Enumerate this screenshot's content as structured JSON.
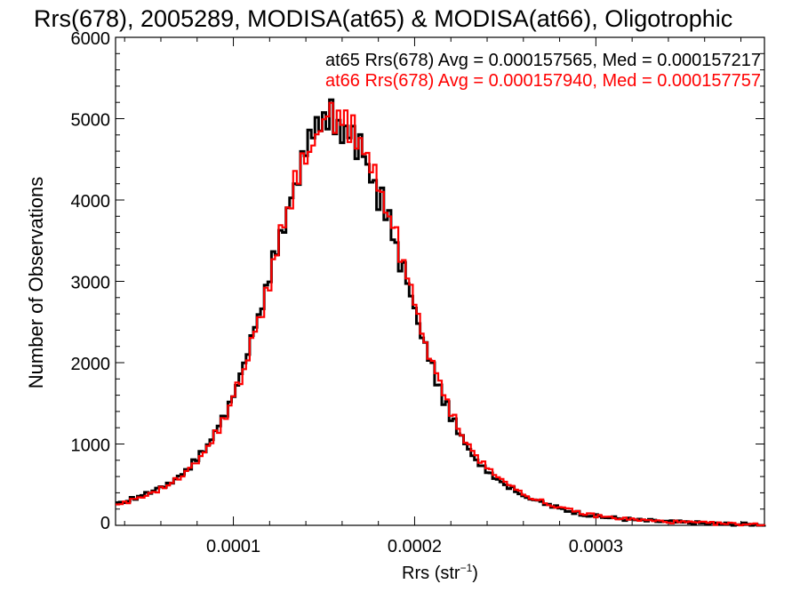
{
  "chart_data": {
    "type": "line",
    "title": "Rrs(678), 2005289, MODISA(at65) & MODISA(at66), Oligotrophic",
    "xlabel": "Rrs (str",
    "xlabel_sup": "−1",
    "xlabel_close": ")",
    "ylabel": "Number of Observations",
    "xlim": [
      3.5e-05,
      0.000393
    ],
    "ylim": [
      0,
      6000
    ],
    "x_tick_labels": [
      "0.0001",
      "0.0002",
      "0.0003"
    ],
    "y_tick_labels": [
      "0",
      "1000",
      "2000",
      "3000",
      "4000",
      "5000",
      "6000"
    ],
    "grid": false,
    "legend_position": "top-right",
    "legend": [
      {
        "text": "at65 Rrs(678) Avg = 0.000157565, Med = 0.000157217",
        "color": "#000000"
      },
      {
        "text": "at66 Rrs(678) Avg = 0.000157940, Med = 0.000157757",
        "color": "#ff0000"
      }
    ],
    "bin_width": 2e-06,
    "x": [
      3.5e-05,
      4.5e-05,
      5.5e-05,
      6.5e-05,
      7.5e-05,
      8.5e-05,
      9.5e-05,
      0.000105,
      0.000115,
      0.000125,
      0.000135,
      0.000145,
      0.00015,
      0.000155,
      0.00016,
      0.000165,
      0.00017,
      0.000175,
      0.000185,
      0.000195,
      0.000205,
      0.000215,
      0.000225,
      0.000235,
      0.000245,
      0.000255,
      0.000265,
      0.000275,
      0.000285,
      0.000295,
      0.000305,
      0.000315,
      0.000325,
      0.000335,
      0.000345,
      0.000355,
      0.000365,
      0.000375,
      0.000385,
      0.000393
    ],
    "series": [
      {
        "name": "at65",
        "color": "#000000",
        "values": [
          250,
          330,
          420,
          520,
          700,
          950,
          1350,
          1900,
          2650,
          3500,
          4300,
          4800,
          4950,
          5000,
          4900,
          4800,
          4600,
          4350,
          3800,
          3050,
          2250,
          1600,
          1100,
          780,
          580,
          430,
          320,
          240,
          180,
          130,
          100,
          80,
          62,
          48,
          38,
          30,
          22,
          15,
          10,
          6
        ]
      },
      {
        "name": "at66",
        "color": "#ff0000",
        "values": [
          230,
          310,
          400,
          500,
          680,
          920,
          1310,
          1850,
          2600,
          3450,
          4250,
          4780,
          4950,
          5020,
          4950,
          4850,
          4650,
          4400,
          3880,
          3120,
          2320,
          1660,
          1150,
          820,
          610,
          450,
          335,
          250,
          188,
          136,
          104,
          83,
          64,
          50,
          40,
          31,
          23,
          16,
          11,
          7
        ]
      }
    ]
  }
}
